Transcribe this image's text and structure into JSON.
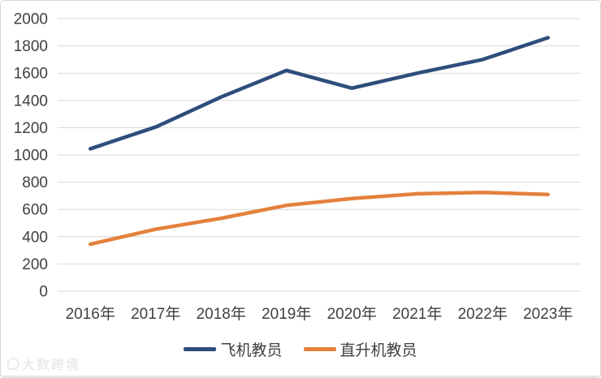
{
  "watermark": {
    "text": "大数跨境"
  },
  "chart_data": {
    "type": "line",
    "title": "",
    "xlabel": "",
    "ylabel": "",
    "categories": [
      "2016年",
      "2017年",
      "2018年",
      "2019年",
      "2020年",
      "2021年",
      "2022年",
      "2023年"
    ],
    "series": [
      {
        "name": "飞机教员",
        "color": "#2e4d7c",
        "values": [
          1045,
          1205,
          1425,
          1620,
          1490,
          1600,
          1700,
          1860
        ]
      },
      {
        "name": "直升机教员",
        "color": "#e4813c",
        "values": [
          345,
          455,
          535,
          630,
          680,
          715,
          725,
          710
        ]
      }
    ],
    "ylim": [
      0,
      2000
    ],
    "yticks": [
      0,
      200,
      400,
      600,
      800,
      1000,
      1200,
      1400,
      1600,
      1800,
      2000
    ],
    "grid": "horizontal",
    "grid_color": "#d9d9d9",
    "axis_text_color": "#404040",
    "legend_position": "bottom"
  }
}
